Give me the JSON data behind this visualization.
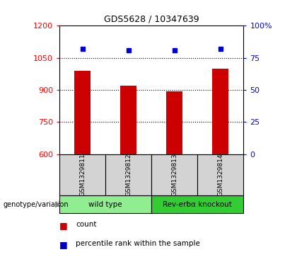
{
  "title": "GDS5628 / 10347639",
  "samples": [
    "GSM1329811",
    "GSM1329812",
    "GSM1329813",
    "GSM1329814"
  ],
  "counts": [
    990,
    920,
    895,
    1000
  ],
  "percentile_ranks": [
    82,
    81,
    81,
    82
  ],
  "ylim_left": [
    600,
    1200
  ],
  "ylim_right": [
    0,
    100
  ],
  "yticks_left": [
    600,
    750,
    900,
    1050,
    1200
  ],
  "yticks_right": [
    0,
    25,
    50,
    75,
    100
  ],
  "ytick_right_labels": [
    "0",
    "25",
    "50",
    "75",
    "100%"
  ],
  "bar_color": "#cc0000",
  "dot_color": "#0000cc",
  "bar_width": 0.35,
  "grid_yticks": [
    750,
    900,
    1050
  ],
  "groups": [
    {
      "label": "wild type",
      "samples": [
        0,
        1
      ],
      "color": "#90EE90"
    },
    {
      "label": "Rev-erbα knockout",
      "samples": [
        2,
        3
      ],
      "color": "#33cc33"
    }
  ],
  "genotype_label": "genotype/variation",
  "legend_count_label": "count",
  "legend_percentile_label": "percentile rank within the sample",
  "background_sample_row": "#d3d3d3"
}
